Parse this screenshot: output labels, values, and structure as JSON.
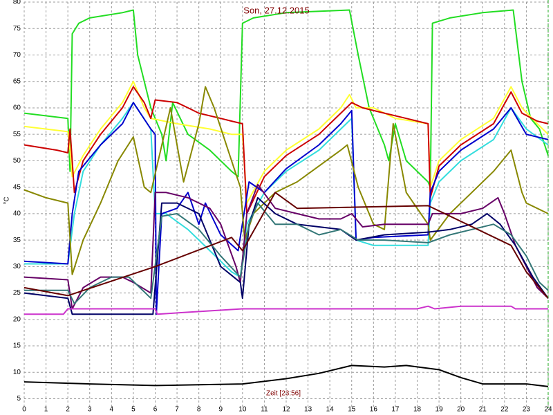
{
  "chart_data": {
    "type": "line",
    "title": "Son, 27.12.2015",
    "x_label": "Zeit [23:56]",
    "y_label": "°C",
    "xlim": [
      0,
      24
    ],
    "xticks": [
      0,
      1,
      2,
      3,
      4,
      5,
      6,
      7,
      8,
      9,
      10,
      11,
      12,
      13,
      14,
      15,
      16,
      17,
      18,
      19,
      20,
      21,
      22,
      23,
      24
    ],
    "ylim": [
      3.5,
      80
    ],
    "yticks": [
      5,
      10,
      15,
      20,
      25,
      30,
      35,
      40,
      45,
      50,
      55,
      60,
      65,
      70,
      75,
      80
    ],
    "grid": true,
    "series": [
      {
        "color": "#22dd22",
        "x": [
          0,
          2,
          2.1,
          2.2,
          2.5,
          3,
          4.5,
          5,
          5.2,
          5.8,
          6.3,
          6.5,
          6.8,
          7.5,
          8.5,
          9.5,
          9.8,
          10,
          10.5,
          12,
          14.9,
          15.3,
          15.8,
          16.5,
          16.7,
          17,
          17.5,
          18.5,
          18.6,
          18.7,
          19.5,
          21,
          22.4,
          22.8,
          23.2,
          23.6,
          24
        ],
        "values": [
          59,
          58,
          48,
          74,
          76,
          77,
          78,
          78.5,
          70,
          60,
          55,
          50,
          61,
          55,
          52,
          48,
          47,
          76,
          77,
          78,
          78.5,
          70,
          60,
          53,
          50,
          57,
          50,
          46,
          45,
          76,
          77,
          78,
          78.5,
          65,
          58,
          56,
          51
        ]
      },
      {
        "color": "#ffff33",
        "x": [
          0,
          2,
          2.1,
          2.2,
          2.7,
          3.5,
          4.5,
          5,
          5.5,
          5.8,
          7,
          8.5,
          9.5,
          10,
          10.2,
          11,
          12,
          13.5,
          14.5,
          14.9,
          15.2,
          16,
          17,
          18.5,
          18.6,
          19,
          20,
          21.5,
          22.3,
          22.8,
          23.5,
          24
        ],
        "values": [
          56.5,
          55.5,
          52,
          47,
          51,
          56,
          61,
          65,
          60,
          58,
          57,
          56,
          55,
          55,
          42,
          48,
          52,
          56,
          60,
          62.5,
          60,
          60,
          58,
          57,
          45,
          50,
          54,
          58,
          64,
          60,
          57,
          55
        ]
      },
      {
        "color": "#cc0000",
        "x": [
          0,
          1.5,
          2,
          2.1,
          2.3,
          2.7,
          3.5,
          4.5,
          5,
          5.5,
          5.8,
          6,
          7,
          7.5,
          8,
          9,
          9.5,
          10,
          10.2,
          11,
          12,
          13.5,
          14.5,
          15,
          15.5,
          16.5,
          17.5,
          18.5,
          18.6,
          19,
          20,
          21.5,
          22.3,
          22.8,
          23.5,
          24
        ],
        "values": [
          53,
          52,
          51.5,
          56,
          44,
          50,
          55,
          60,
          64,
          61,
          58,
          61.5,
          61,
          60,
          59,
          58,
          57.5,
          57,
          40,
          47,
          51,
          55,
          59,
          61,
          60,
          59,
          58,
          57,
          43,
          49,
          53,
          57,
          63,
          59,
          57.5,
          57
        ]
      },
      {
        "color": "#33dddd",
        "x": [
          0,
          2,
          2.3,
          2.7,
          3.5,
          4.5,
          5,
          5.8,
          6,
          6.5,
          7.5,
          8.5,
          9.5,
          9.9,
          10.2,
          11,
          12,
          13.5,
          14.5,
          15,
          15.2,
          16,
          18.5,
          18.6,
          19,
          20,
          21.5,
          22.3,
          23,
          24
        ],
        "values": [
          30.5,
          30.5,
          40,
          48,
          53,
          58,
          61,
          56,
          40,
          40,
          37,
          33,
          29,
          28,
          38,
          44,
          48,
          52,
          56,
          58,
          35,
          34,
          34,
          42,
          46,
          50,
          54,
          60,
          56,
          53
        ]
      },
      {
        "color": "#0000cc",
        "x": [
          0,
          2,
          2.2,
          2.5,
          3.5,
          4.5,
          5,
          5.8,
          6,
          6.05,
          6.3,
          7,
          7.5,
          8,
          8.3,
          9,
          9.8,
          10.3,
          11,
          12,
          13.5,
          14.5,
          15,
          15.2,
          16,
          18.5,
          18.6,
          19,
          20,
          21.5,
          22.3,
          23,
          24
        ],
        "values": [
          31,
          30.5,
          40,
          48,
          53,
          57,
          61,
          56,
          55,
          21,
          40,
          41,
          44,
          38,
          42,
          36,
          33,
          46,
          44,
          48.5,
          53,
          57,
          59.5,
          35,
          35.5,
          36,
          44,
          48,
          52,
          56,
          60,
          55,
          54
        ]
      },
      {
        "color": "#888800",
        "x": [
          0,
          1,
          2,
          2.2,
          2.7,
          3.5,
          4.3,
          5,
          5.5,
          5.8,
          6.7,
          7.3,
          8,
          8.3,
          8.7,
          9.5,
          9.9,
          10.1,
          10.5,
          11.5,
          12.5,
          13.5,
          14.5,
          14.8,
          15.3,
          16,
          16.5,
          16.9,
          17.5,
          18.5,
          18.6,
          19.5,
          20.5,
          21.5,
          22.3,
          22.8,
          23,
          24
        ],
        "values": [
          44.5,
          43,
          42,
          28.5,
          35,
          42,
          50,
          54.5,
          45,
          44,
          60,
          46,
          57,
          64,
          60,
          50,
          45,
          35,
          40,
          44,
          46,
          49,
          52,
          53,
          45,
          38,
          37,
          57,
          44,
          38,
          35,
          40,
          44,
          48,
          52,
          44,
          42,
          40
        ]
      },
      {
        "color": "#660066",
        "x": [
          0,
          2,
          2.2,
          2.7,
          3.5,
          4.5,
          5,
          5.8,
          6,
          6.5,
          7.5,
          8.5,
          9,
          9.7,
          9.9,
          10.2,
          10.7,
          11.5,
          12.5,
          13.5,
          14.5,
          15,
          15.5,
          16.5,
          18.5,
          18.7,
          20,
          21,
          21.7,
          22,
          22.5,
          23,
          23.5,
          24
        ],
        "values": [
          28,
          27.5,
          22,
          26,
          28,
          28,
          27,
          25,
          44,
          44,
          43,
          41,
          38,
          30,
          27,
          40,
          45.5,
          41,
          40,
          39,
          39,
          40,
          37.5,
          38,
          38,
          40,
          40,
          41,
          43,
          40,
          34,
          30,
          26,
          24
        ]
      },
      {
        "color": "#000066",
        "x": [
          0,
          2,
          2.2,
          5.9,
          6.3,
          7,
          8,
          9,
          9.9,
          10,
          10.3,
          10.7,
          11.5,
          12.5,
          13.5,
          14.5,
          15.2,
          16.5,
          18.5,
          19.5,
          20.5,
          21.2,
          21.8,
          22.5,
          23.3,
          24
        ],
        "values": [
          25,
          24,
          21,
          21,
          42,
          42,
          40,
          30,
          27,
          24,
          38,
          43,
          40,
          38,
          37.5,
          37,
          35,
          36,
          36.5,
          37,
          38,
          40,
          38,
          34,
          28,
          24
        ]
      },
      {
        "color": "#337777",
        "x": [
          0,
          2,
          2.3,
          3,
          4,
          4.8,
          5.8,
          6.3,
          7,
          8,
          9,
          9.9,
          10.3,
          10.7,
          11.5,
          12.5,
          13.5,
          14.5,
          15.3,
          16.5,
          18.5,
          19.5,
          20.5,
          21.5,
          22.3,
          23,
          23.6,
          24
        ],
        "values": [
          25.5,
          25.5,
          23,
          26,
          28,
          28,
          24,
          39.5,
          40,
          37,
          32,
          28,
          38,
          42,
          38,
          38,
          36,
          37,
          35,
          35,
          34.5,
          36,
          37,
          38,
          36,
          32,
          27,
          25.5
        ]
      },
      {
        "color": "#660000",
        "x": [
          0,
          2,
          6,
          9.5,
          10,
          11.5,
          12.5,
          18.5,
          22.3,
          23,
          24
        ],
        "values": [
          26,
          24.5,
          30,
          35.5,
          33,
          44,
          41,
          41.5,
          34,
          29,
          24
        ]
      },
      {
        "color": "#cc33cc",
        "x": [
          0,
          1.8,
          2,
          6,
          6.1,
          10,
          18,
          18.5,
          18.8,
          20,
          22.3,
          22.5,
          24
        ],
        "values": [
          21,
          21,
          22,
          22,
          21,
          22,
          22,
          22.5,
          22,
          22.5,
          22.5,
          22,
          22
        ]
      },
      {
        "color": "#000000",
        "x": [
          0,
          3,
          6,
          10,
          12,
          13.5,
          15,
          16.5,
          17.5,
          19,
          20,
          21,
          23,
          24
        ],
        "values": [
          8.2,
          7.8,
          7.5,
          7.8,
          8.8,
          9.8,
          11.3,
          11,
          11.3,
          10.5,
          9,
          7.8,
          7.8,
          7.3
        ]
      }
    ]
  }
}
